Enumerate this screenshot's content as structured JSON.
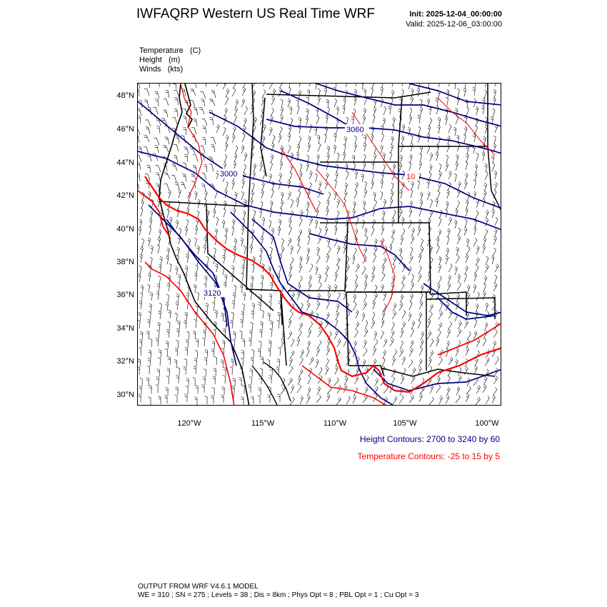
{
  "header": {
    "title": "IWFAQRP Western US Real Time WRF",
    "init": "Init: 2025-12-04_00:00:00",
    "valid": "Valid: 2025-12-06_03:00:00"
  },
  "fields": [
    {
      "name": "Temperature",
      "unit": "(C)"
    },
    {
      "name": "Height",
      "unit": "(m)"
    },
    {
      "name": "Winds",
      "unit": "(kts)"
    }
  ],
  "map": {
    "latitude_ticks": [
      "48°N",
      "46°N",
      "44°N",
      "42°N",
      "40°N",
      "38°N",
      "36°N",
      "34°N",
      "32°N",
      "30°N"
    ],
    "longitude_ticks": [
      "120°W",
      "115°W",
      "110°W",
      "105°W",
      "100°W"
    ],
    "lat_range": [
      29.5,
      48.7
    ],
    "lon_range": [
      -124.0,
      -98.2
    ],
    "contour_labels": {
      "height": [
        "3060",
        "3000",
        "3120"
      ],
      "temperature": [
        "10"
      ]
    },
    "colors": {
      "height_contour": "#00007f",
      "temperature_contour": "#ff0000",
      "wind_barb": "#000000",
      "borders": "#000000"
    }
  },
  "legend": {
    "height": "Height Contours: 2700 to 3240 by 60",
    "temperature": "Temperature Contours: -25 to 15 by 5"
  },
  "footer": {
    "line1": "OUTPUT FROM WRF V4.6.1 MODEL",
    "line2": "WE = 310 ; SN = 275 ; Levels = 38 ; Dis = 8km ; Phys Opt = 8 ; PBL Opt = 1 ; Cu Opt = 3"
  }
}
